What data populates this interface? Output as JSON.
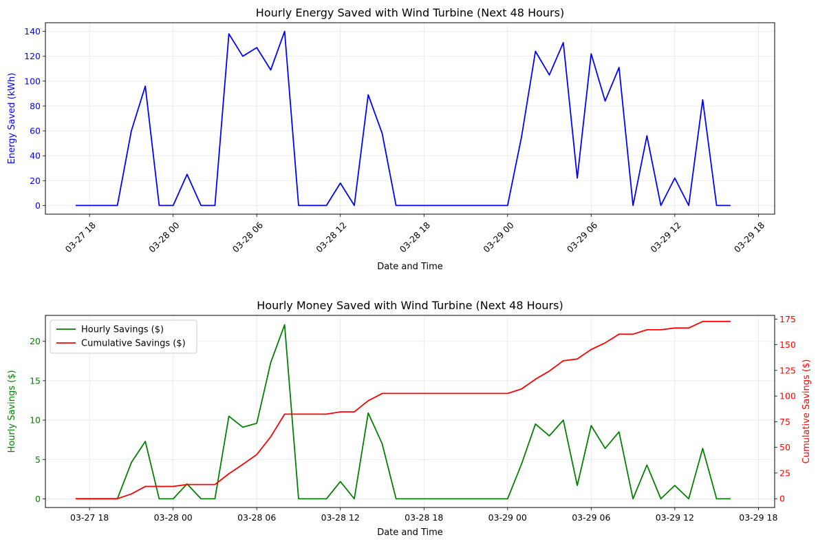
{
  "chart_data": [
    {
      "type": "line",
      "title": "Hourly Energy Saved with Wind Turbine (Next 48 Hours)",
      "xlabel": "Date and Time",
      "ylabel": "Energy Saved (kWh)",
      "ylim": [
        -7,
        147
      ],
      "yticks": [
        0,
        20,
        40,
        60,
        80,
        100,
        120,
        140
      ],
      "xlim": [
        "03-27 14:50",
        "03-29 19:10"
      ],
      "xticks": [
        "03-27 18",
        "03-28 00",
        "03-28 06",
        "03-28 12",
        "03-28 18",
        "03-29 00",
        "03-29 06",
        "03-29 12",
        "03-29 18"
      ],
      "xtick_rotation": 45,
      "grid": true,
      "colors": {
        "series": "#0000ff",
        "ylabel": "#0000ff"
      },
      "x": [
        "03-27 17",
        "03-27 18",
        "03-27 19",
        "03-27 20",
        "03-27 21",
        "03-27 22",
        "03-27 23",
        "03-28 00",
        "03-28 01",
        "03-28 02",
        "03-28 03",
        "03-28 04",
        "03-28 05",
        "03-28 06",
        "03-28 07",
        "03-28 08",
        "03-28 09",
        "03-28 10",
        "03-28 11",
        "03-28 12",
        "03-28 13",
        "03-28 14",
        "03-28 15",
        "03-28 16",
        "03-28 17",
        "03-28 18",
        "03-28 19",
        "03-28 20",
        "03-28 21",
        "03-28 22",
        "03-28 23",
        "03-29 00",
        "03-29 01",
        "03-29 02",
        "03-29 03",
        "03-29 04",
        "03-29 05",
        "03-29 06",
        "03-29 07",
        "03-29 08",
        "03-29 09",
        "03-29 10",
        "03-29 11",
        "03-29 12",
        "03-29 13",
        "03-29 14",
        "03-29 15",
        "03-29 16"
      ],
      "series": [
        {
          "values": [
            0,
            0,
            0,
            0,
            60,
            96,
            0,
            0,
            25,
            0,
            0,
            138,
            120,
            127,
            109,
            140,
            0,
            0,
            0,
            18,
            0,
            89,
            58,
            0,
            0,
            0,
            0,
            0,
            0,
            0,
            0,
            0,
            55,
            124,
            105,
            131,
            22,
            122,
            84,
            111,
            0,
            56,
            0,
            22,
            0,
            85,
            0,
            0
          ]
        }
      ]
    },
    {
      "type": "line",
      "title": "Hourly Money Saved with Wind Turbine (Next 48 Hours)",
      "xlabel": "Date and Time",
      "ylabel": "Hourly Savings ($)",
      "ylabel_right": "Cumulative Savings ($)",
      "ylim": [
        -1.1,
        23.3
      ],
      "yticks": [
        0,
        5,
        10,
        15,
        20
      ],
      "ylim_right": [
        -8.6,
        178.6
      ],
      "yticks_right": [
        0,
        25,
        50,
        75,
        100,
        125,
        150,
        175
      ],
      "xlim": [
        "03-27 14:50",
        "03-29 19:10"
      ],
      "xticks": [
        "03-27 18",
        "03-28 00",
        "03-28 06",
        "03-28 12",
        "03-28 18",
        "03-29 00",
        "03-29 06",
        "03-29 12",
        "03-29 18"
      ],
      "grid": true,
      "legend": "upper-left",
      "colors": {
        "hourly": "#008000",
        "cumulative": "#ff0000"
      },
      "x": [
        "03-27 17",
        "03-27 18",
        "03-27 19",
        "03-27 20",
        "03-27 21",
        "03-27 22",
        "03-27 23",
        "03-28 00",
        "03-28 01",
        "03-28 02",
        "03-28 03",
        "03-28 04",
        "03-28 05",
        "03-28 06",
        "03-28 07",
        "03-28 08",
        "03-28 09",
        "03-28 10",
        "03-28 11",
        "03-28 12",
        "03-28 13",
        "03-28 14",
        "03-28 15",
        "03-28 16",
        "03-28 17",
        "03-28 18",
        "03-28 19",
        "03-28 20",
        "03-28 21",
        "03-28 22",
        "03-28 23",
        "03-29 00",
        "03-29 01",
        "03-29 02",
        "03-29 03",
        "03-29 04",
        "03-29 05",
        "03-29 06",
        "03-29 07",
        "03-29 08",
        "03-29 09",
        "03-29 10",
        "03-29 11",
        "03-29 12",
        "03-29 13",
        "03-29 14",
        "03-29 15",
        "03-29 16"
      ],
      "series": [
        {
          "name": "Hourly Savings ($)",
          "axis": "left",
          "values": [
            0,
            0,
            0,
            0,
            4.6,
            7.3,
            0,
            0,
            1.9,
            0,
            0,
            10.5,
            9.1,
            9.6,
            17.3,
            22.1,
            0,
            0,
            0,
            2.2,
            0,
            10.9,
            7.0,
            0,
            0,
            0,
            0,
            0,
            0,
            0,
            0,
            0,
            4.4,
            9.5,
            8.0,
            10.0,
            1.7,
            9.3,
            6.4,
            8.5,
            0,
            4.3,
            0,
            1.7,
            0,
            6.4,
            0,
            0
          ]
        },
        {
          "name": "Cumulative Savings ($)",
          "axis": "right",
          "values": [
            0,
            0,
            0,
            0,
            4.6,
            11.9,
            11.9,
            11.9,
            13.8,
            13.8,
            13.8,
            24.3,
            33.4,
            43.0,
            60.3,
            82.4,
            82.4,
            82.4,
            82.4,
            84.6,
            84.6,
            95.5,
            102.5,
            102.5,
            102.5,
            102.5,
            102.5,
            102.5,
            102.5,
            102.5,
            102.5,
            102.5,
            106.9,
            116.4,
            124.4,
            134.4,
            136.1,
            145.4,
            151.8,
            160.3,
            160.3,
            164.6,
            164.6,
            166.3,
            166.3,
            172.7,
            172.7,
            172.7
          ]
        }
      ]
    }
  ]
}
